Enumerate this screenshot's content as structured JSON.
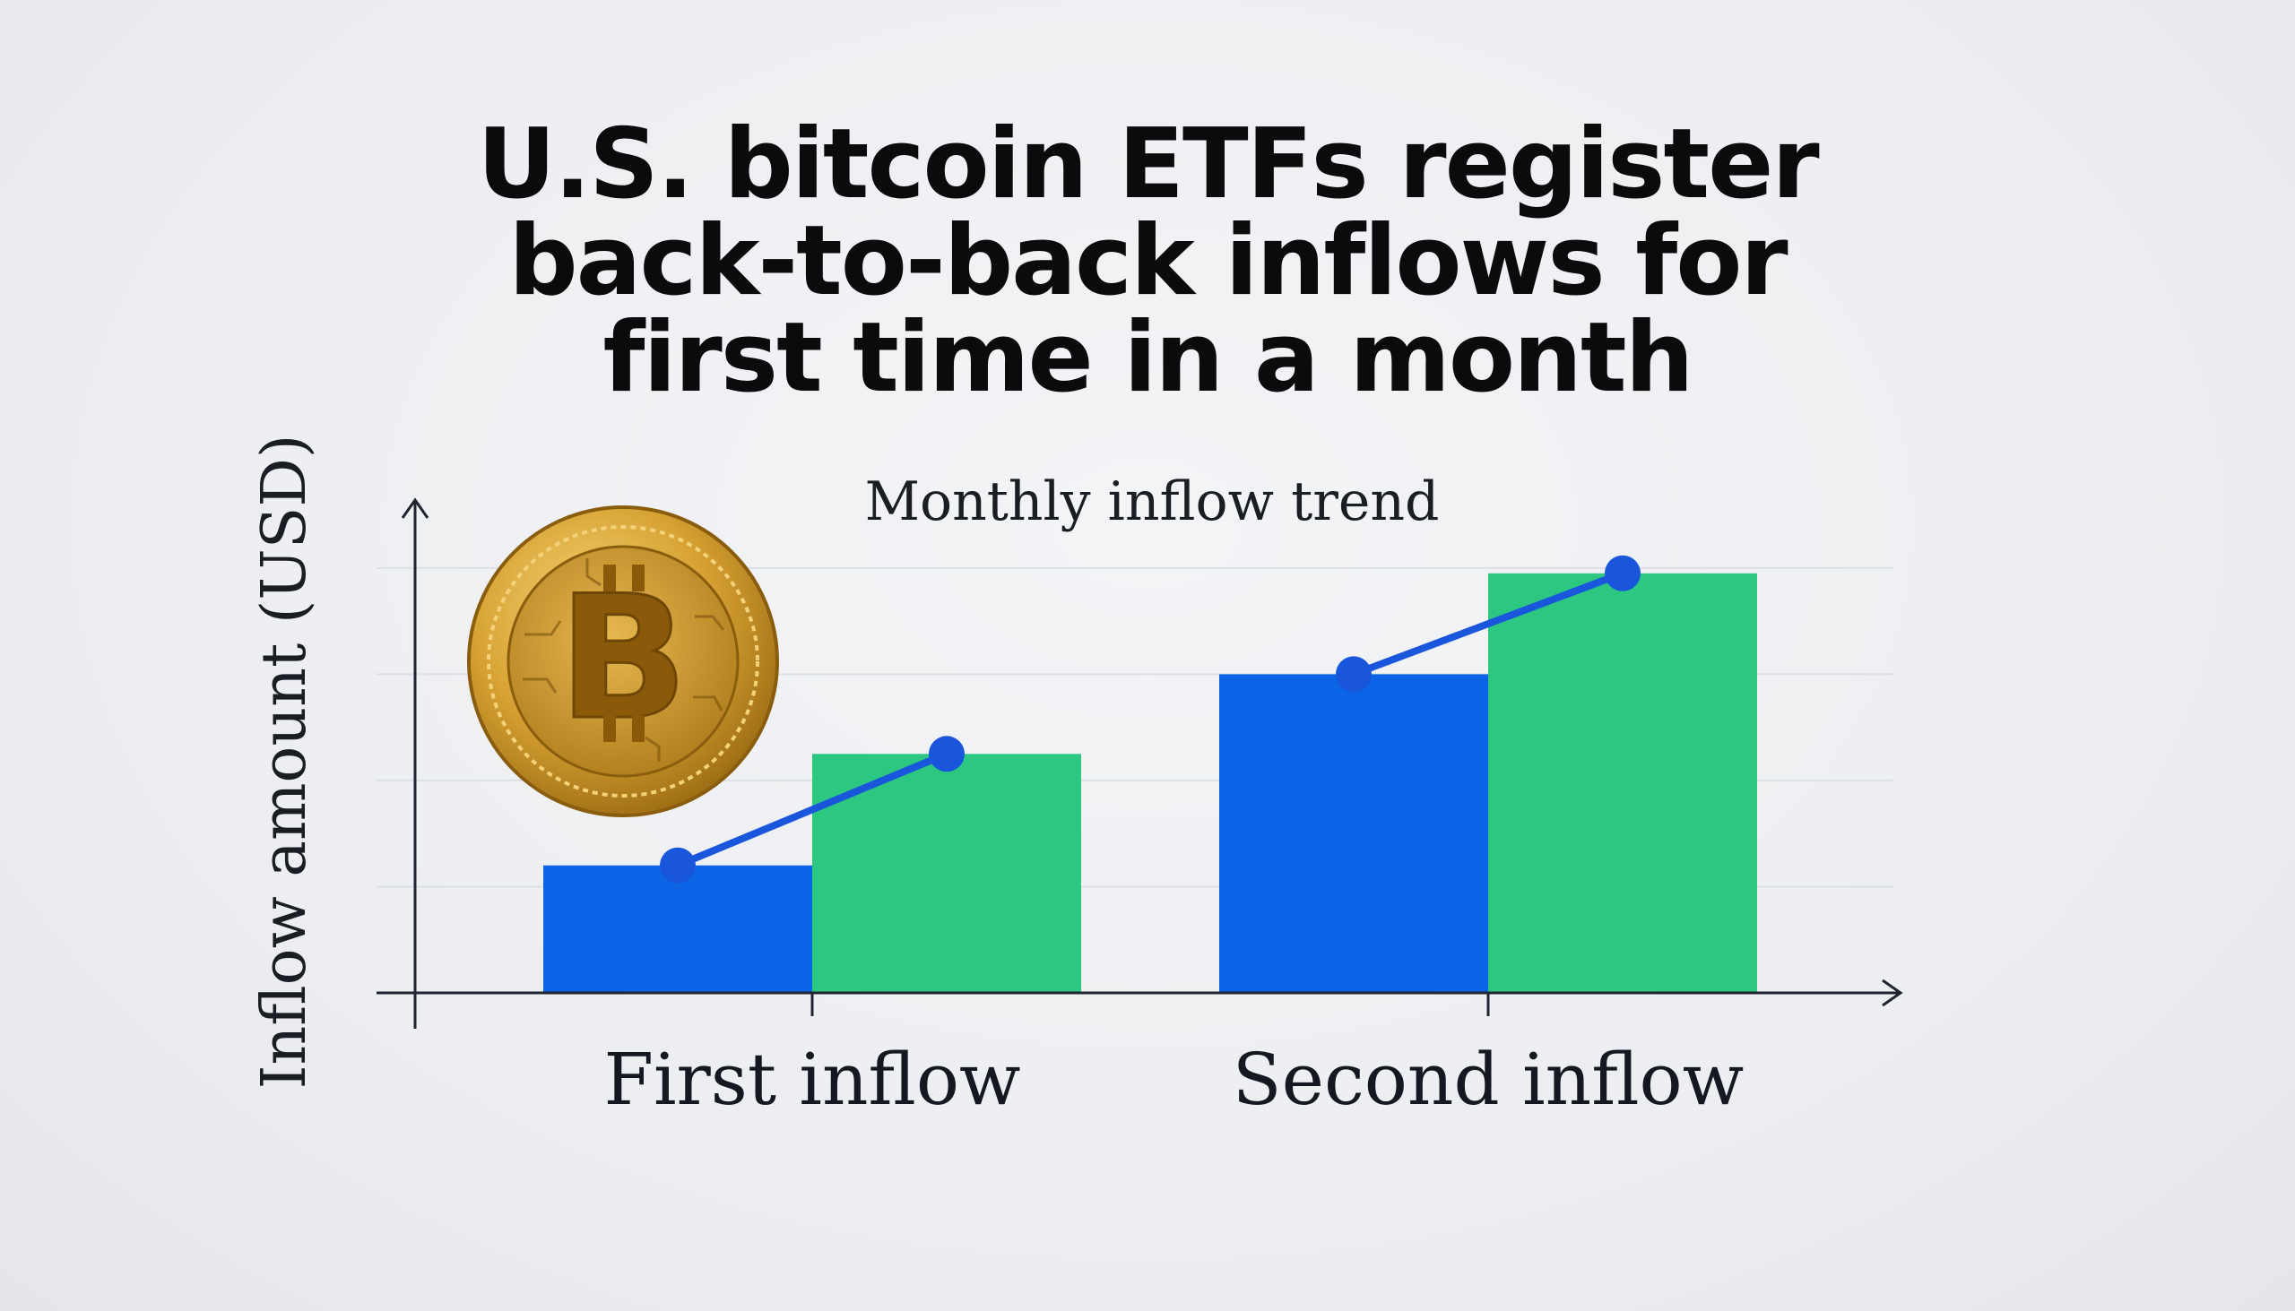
{
  "headline": {
    "line1": "U.S. bitcoin ETFs register",
    "line2": "back-to-back inflows for",
    "line3": "first time in a month"
  },
  "colors": {
    "blue": "#0b63e5",
    "green": "#2cc882",
    "trend_line": "#1a56db",
    "axis": "#1f2430",
    "grid": "#dcdfe4",
    "coin_gold": "#c9962a"
  },
  "icons": {
    "coin": "bitcoin-coin-icon"
  },
  "chart_data": {
    "type": "bar",
    "title": "Monthly inflow trend",
    "ylabel": "Inflow amount (USD)",
    "xlabel": "",
    "categories": [
      "First inflow",
      "Second inflow"
    ],
    "series": [
      {
        "values": [
          1.2,
          3.0
        ],
        "color": "#0b63e5"
      },
      {
        "values": [
          2.25,
          3.95
        ],
        "color": "#2cc882"
      }
    ],
    "trend_points": [
      [
        1.2,
        2.25
      ],
      [
        3.0,
        3.95
      ]
    ],
    "ylim": [
      0,
      4.1
    ],
    "yticks": [
      1,
      2,
      3,
      4
    ],
    "grid": true,
    "y_tick_labels_shown": false
  }
}
